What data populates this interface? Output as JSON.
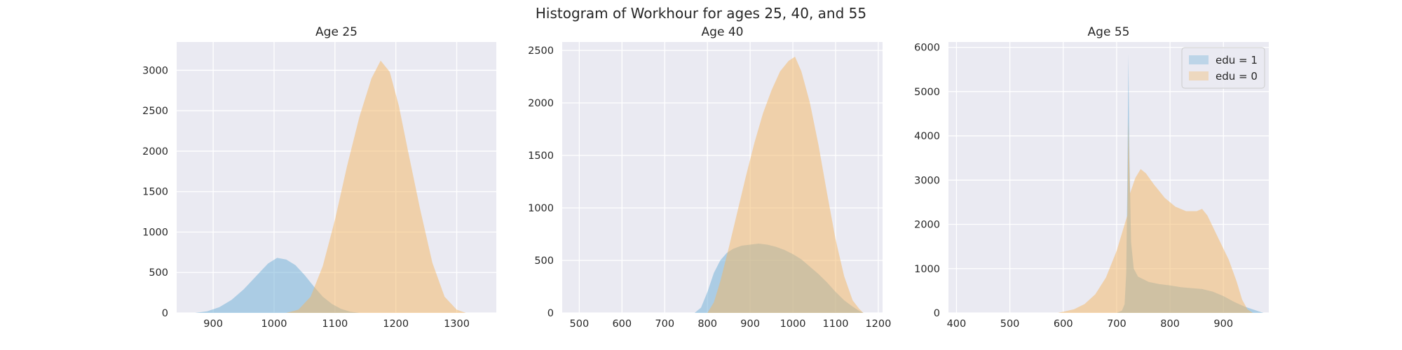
{
  "figure": {
    "title": "Histogram of Workhour for ages 25, 40, and 55",
    "background": "#ffffff",
    "panel_background": "#eaeaf2",
    "grid_color": "#ffffff"
  },
  "legend": {
    "placement": "upper-right of third panel",
    "entries": [
      {
        "label": "edu = 1",
        "color": "#6baed6"
      },
      {
        "label": "edu = 0",
        "color": "#f4b661"
      }
    ]
  },
  "chart_data": [
    {
      "type": "histogram",
      "title": "Age 25",
      "xlabel": "",
      "ylabel": "",
      "xlim": [
        840,
        1365
      ],
      "ylim": [
        0,
        3350
      ],
      "xticks": [
        900,
        1000,
        1100,
        1200,
        1300
      ],
      "yticks": [
        0,
        500,
        1000,
        1500,
        2000,
        2500,
        3000
      ],
      "grid": true,
      "series": [
        {
          "name": "edu = 1",
          "color": "#6baed6",
          "opacity": 0.5,
          "points": [
            [
              870,
              0
            ],
            [
              890,
              20
            ],
            [
              910,
              70
            ],
            [
              930,
              160
            ],
            [
              950,
              290
            ],
            [
              970,
              450
            ],
            [
              990,
              610
            ],
            [
              1005,
              680
            ],
            [
              1020,
              660
            ],
            [
              1035,
              590
            ],
            [
              1050,
              470
            ],
            [
              1065,
              330
            ],
            [
              1080,
              200
            ],
            [
              1095,
              110
            ],
            [
              1110,
              50
            ],
            [
              1125,
              15
            ],
            [
              1140,
              0
            ]
          ]
        },
        {
          "name": "edu = 0",
          "color": "#f4b661",
          "opacity": 0.5,
          "points": [
            [
              1020,
              0
            ],
            [
              1040,
              40
            ],
            [
              1060,
              200
            ],
            [
              1080,
              580
            ],
            [
              1100,
              1150
            ],
            [
              1120,
              1820
            ],
            [
              1140,
              2420
            ],
            [
              1160,
              2900
            ],
            [
              1175,
              3120
            ],
            [
              1190,
              2980
            ],
            [
              1205,
              2560
            ],
            [
              1220,
              2000
            ],
            [
              1240,
              1280
            ],
            [
              1260,
              620
            ],
            [
              1280,
              200
            ],
            [
              1300,
              40
            ],
            [
              1315,
              0
            ]
          ]
        }
      ]
    },
    {
      "type": "histogram",
      "title": "Age 40",
      "xlabel": "",
      "ylabel": "",
      "xlim": [
        460,
        1210
      ],
      "ylim": [
        0,
        2580
      ],
      "xticks": [
        500,
        600,
        700,
        800,
        900,
        1000,
        1100,
        1200
      ],
      "yticks": [
        0,
        500,
        1000,
        1500,
        2000,
        2500
      ],
      "grid": true,
      "series": [
        {
          "name": "edu = 1",
          "color": "#6baed6",
          "opacity": 0.5,
          "points": [
            [
              770,
              0
            ],
            [
              785,
              50
            ],
            [
              800,
              200
            ],
            [
              815,
              380
            ],
            [
              830,
              500
            ],
            [
              845,
              570
            ],
            [
              860,
              610
            ],
            [
              880,
              640
            ],
            [
              900,
              650
            ],
            [
              920,
              660
            ],
            [
              940,
              650
            ],
            [
              960,
              630
            ],
            [
              980,
              600
            ],
            [
              1000,
              560
            ],
            [
              1020,
              510
            ],
            [
              1040,
              440
            ],
            [
              1060,
              370
            ],
            [
              1080,
              290
            ],
            [
              1100,
              200
            ],
            [
              1120,
              120
            ],
            [
              1140,
              60
            ],
            [
              1155,
              20
            ],
            [
              1165,
              0
            ]
          ]
        },
        {
          "name": "edu = 0",
          "color": "#f4b661",
          "opacity": 0.5,
          "points": [
            [
              800,
              0
            ],
            [
              815,
              100
            ],
            [
              830,
              300
            ],
            [
              850,
              620
            ],
            [
              870,
              960
            ],
            [
              890,
              1300
            ],
            [
              910,
              1620
            ],
            [
              930,
              1900
            ],
            [
              950,
              2120
            ],
            [
              970,
              2300
            ],
            [
              990,
              2400
            ],
            [
              1005,
              2440
            ],
            [
              1020,
              2300
            ],
            [
              1040,
              2000
            ],
            [
              1060,
              1600
            ],
            [
              1080,
              1140
            ],
            [
              1100,
              700
            ],
            [
              1120,
              350
            ],
            [
              1140,
              120
            ],
            [
              1155,
              40
            ],
            [
              1165,
              0
            ]
          ]
        }
      ]
    },
    {
      "type": "histogram",
      "title": "Age 55",
      "xlabel": "",
      "ylabel": "",
      "xlim": [
        385,
        985
      ],
      "ylim": [
        0,
        6120
      ],
      "xticks": [
        400,
        500,
        600,
        700,
        800,
        900
      ],
      "yticks": [
        0,
        1000,
        2000,
        3000,
        4000,
        5000,
        6000
      ],
      "grid": true,
      "series": [
        {
          "name": "edu = 1",
          "color": "#6baed6",
          "opacity": 0.5,
          "points": [
            [
              700,
              0
            ],
            [
              710,
              50
            ],
            [
              715,
              200
            ],
            [
              718,
              900
            ],
            [
              720,
              3000
            ],
            [
              722,
              5850
            ],
            [
              724,
              3500
            ],
            [
              727,
              1600
            ],
            [
              732,
              1000
            ],
            [
              740,
              820
            ],
            [
              760,
              700
            ],
            [
              780,
              650
            ],
            [
              800,
              620
            ],
            [
              820,
              580
            ],
            [
              840,
              560
            ],
            [
              860,
              540
            ],
            [
              880,
              480
            ],
            [
              900,
              380
            ],
            [
              920,
              250
            ],
            [
              940,
              140
            ],
            [
              960,
              60
            ],
            [
              970,
              20
            ],
            [
              975,
              0
            ]
          ]
        },
        {
          "name": "edu = 0",
          "color": "#f4b661",
          "opacity": 0.5,
          "points": [
            [
              590,
              0
            ],
            [
              620,
              80
            ],
            [
              640,
              200
            ],
            [
              660,
              420
            ],
            [
              680,
              800
            ],
            [
              700,
              1400
            ],
            [
              715,
              2000
            ],
            [
              720,
              2200
            ],
            [
              722,
              4380
            ],
            [
              725,
              2700
            ],
            [
              735,
              3050
            ],
            [
              745,
              3250
            ],
            [
              755,
              3150
            ],
            [
              770,
              2900
            ],
            [
              790,
              2600
            ],
            [
              810,
              2400
            ],
            [
              830,
              2300
            ],
            [
              850,
              2300
            ],
            [
              860,
              2350
            ],
            [
              870,
              2200
            ],
            [
              890,
              1700
            ],
            [
              910,
              1200
            ],
            [
              925,
              700
            ],
            [
              935,
              300
            ],
            [
              945,
              80
            ],
            [
              955,
              0
            ]
          ]
        }
      ]
    }
  ]
}
